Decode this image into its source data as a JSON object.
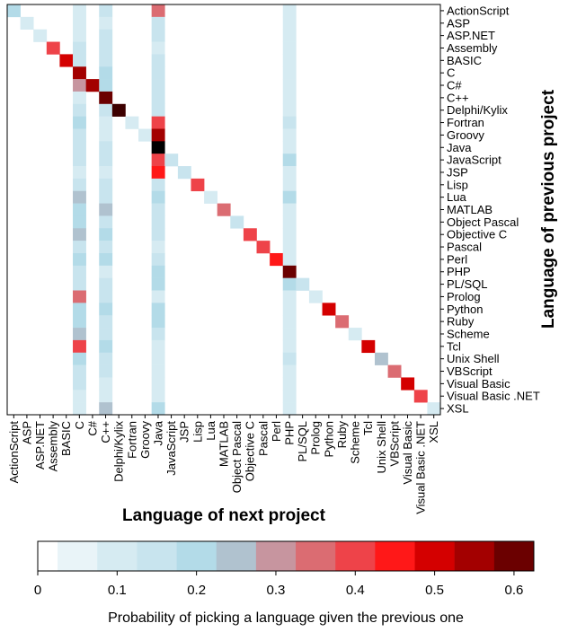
{
  "chart_data": {
    "type": "heatmap",
    "x_title": "Language of next project",
    "y_title": "Language of previous project",
    "languages": [
      "ActionScript",
      "ASP",
      "ASP.NET",
      "Assembly",
      "BASIC",
      "C",
      "C#",
      "C++",
      "Delphi/Kylix",
      "Fortran",
      "Groovy",
      "Java",
      "JavaScript",
      "JSP",
      "Lisp",
      "Lua",
      "MATLAB",
      "Object Pascal",
      "Objective C",
      "Pascal",
      "Perl",
      "PHP",
      "PL/SQL",
      "Prolog",
      "Python",
      "Ruby",
      "Scheme",
      "Tcl",
      "Unix Shell",
      "VBScript",
      "Visual Basic",
      "Visual Basic .NET",
      "XSL"
    ],
    "colorbar": {
      "title": "Probability of picking a language given the previous one",
      "range": [
        0,
        0.625
      ],
      "ticks": [
        "0",
        "0.1",
        "0.2",
        "0.3",
        "0.4",
        "0.5",
        "0.6"
      ],
      "bins": [
        0,
        0.025,
        0.075,
        0.125,
        0.175,
        0.225,
        0.275,
        0.325,
        0.375,
        0.425,
        0.475,
        0.525,
        0.575,
        0.625
      ],
      "colors": [
        "#ffffff",
        "#e9f4f8",
        "#d6ebf2",
        "#c8e4ee",
        "#b3dbe8",
        "#b0c2cf",
        "#c7959f",
        "#db6c72",
        "#ee4349",
        "#ff1818",
        "#d40000",
        "#a30000",
        "#6b0000",
        "#3d0000",
        "#000000"
      ]
    },
    "values": {
      "diagonal": [
        0.15,
        0.05,
        0.03,
        0.35,
        0.45,
        0.5,
        0.5,
        0.55,
        0.6,
        0.03,
        0.03,
        0.63,
        0.1,
        0.12,
        0.35,
        0.03,
        0.28,
        0.1,
        0.35,
        0.35,
        0.4,
        0.57,
        0.1,
        0.03,
        0.45,
        0.28,
        0.05,
        0.45,
        0.2,
        0.28,
        0.45,
        0.35,
        0.05
      ],
      "column_C": [
        0.05,
        0.05,
        0.03,
        0.1,
        0.1,
        0.5,
        0.25,
        0.03,
        0.08,
        0.15,
        0.1,
        0.1,
        0.08,
        0.05,
        0.1,
        0.2,
        0.15,
        0.15,
        0.2,
        0.1,
        0.15,
        0.1,
        0.1,
        0.28,
        0.15,
        0.15,
        0.2,
        0.35,
        0.15,
        0.1,
        0.08,
        0.05,
        0.03
      ],
      "column_Cpp": [
        0.1,
        0.03,
        0.1,
        0.1,
        0.1,
        0.15,
        0.15,
        0.55,
        0.1,
        0.05,
        0.03,
        0.1,
        0.08,
        0.03,
        0.1,
        0.1,
        0.2,
        0.1,
        0.15,
        0.1,
        0.15,
        0.05,
        0.1,
        0.1,
        0.15,
        0.1,
        0.1,
        0.15,
        0.1,
        0.1,
        0.03,
        0.05,
        0.2
      ],
      "column_Java": [
        0.3,
        0.08,
        0.1,
        0.05,
        0.08,
        0.1,
        0.1,
        0.12,
        0.1,
        0.35,
        0.5,
        0.63,
        0.35,
        0.4,
        0.1,
        0.15,
        0.08,
        0.1,
        0.1,
        0.05,
        0.1,
        0.15,
        0.15,
        0.05,
        0.15,
        0.15,
        0.1,
        0.05,
        0.05,
        0.05,
        0.03,
        0.03,
        0.15
      ],
      "column_PHP": [
        0.05,
        0.03,
        0.03,
        0.03,
        0.03,
        0.05,
        0.05,
        0.05,
        0.05,
        0.1,
        0.05,
        0.05,
        0.15,
        0.05,
        0.03,
        0.15,
        0.03,
        0.05,
        0.05,
        0.05,
        0.05,
        0.57,
        0.15,
        0.05,
        0.05,
        0.05,
        0.05,
        0.05,
        0.1,
        0.05,
        0.03,
        0.03,
        0.05
      ]
    }
  }
}
